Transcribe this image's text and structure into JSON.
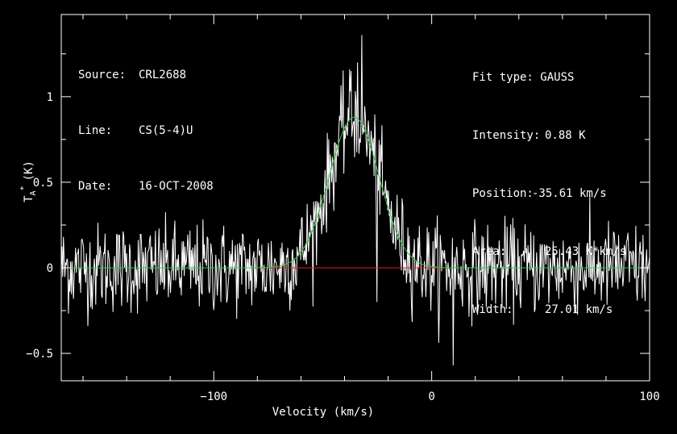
{
  "header": {
    "source_key": "Source:",
    "source_val": "CRL2688",
    "line_key": "Line:",
    "line_val": "CS(5-4)U",
    "date_key": "Date:",
    "date_val": "16-OCT-2008"
  },
  "fit": {
    "type_key": "Fit type:",
    "type_val": "GAUSS",
    "intensity_key": "Intensity:",
    "intensity_val": "0.88 K",
    "position_key": "Position:",
    "position_val": "-35.61 km/s",
    "area_key": "Area:",
    "area_val": "25.43 K*km/s",
    "width_key": "Width:",
    "width_val": "27.01 km/s"
  },
  "colors": {
    "background": "#000000",
    "spectrum": "#ffffff",
    "fit_curve": "#2ecc40",
    "baseline": "#d62020",
    "axes": "#ffffff"
  },
  "chart_data": {
    "type": "line",
    "xlabel": "Velocity (km/s)",
    "ylabel_main": "T",
    "ylabel_sub": "A",
    "ylabel_sup": "*",
    "ylabel_unit": "(K)",
    "xlim": [
      -170,
      100
    ],
    "ylim": [
      -0.66,
      1.48
    ],
    "xticks": [
      {
        "value": -100,
        "label": "−100"
      },
      {
        "value": 0,
        "label": "0"
      },
      {
        "value": 100,
        "label": "100"
      }
    ],
    "yticks": [
      {
        "value": -0.5,
        "label": "−0.5"
      },
      {
        "value": 0,
        "label": "0"
      },
      {
        "value": 0.5,
        "label": "0.5"
      },
      {
        "value": 1,
        "label": "1"
      }
    ],
    "baseline_value": 0,
    "gaussian_fit": {
      "amplitude": 0.88,
      "center": -35.61,
      "fwhm": 27.01
    },
    "noise_rms": 0.13,
    "channel_width": 0.33,
    "series": [
      {
        "kind": "spectrum",
        "representative_peaks": [
          {
            "x": -32,
            "y": 1.36
          },
          {
            "x": -34,
            "y": 1.2
          },
          {
            "x": -37,
            "y": 1.15
          },
          {
            "x": -20,
            "y": 0.45
          },
          {
            "x": -25,
            "y": -0.2
          },
          {
            "x": 10,
            "y": -0.57
          }
        ]
      }
    ]
  }
}
